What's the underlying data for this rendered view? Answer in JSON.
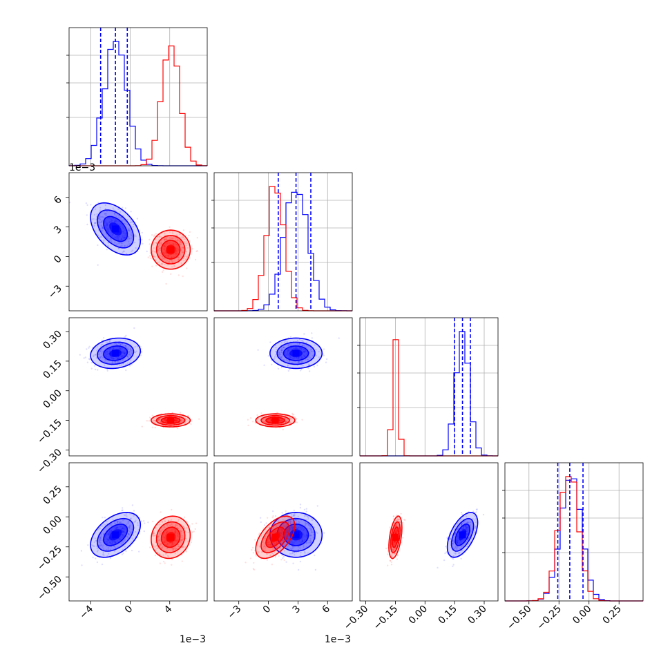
{
  "chart_data": {
    "type": "scatter",
    "kind": "corner-plot",
    "grid": true,
    "dims": [
      {
        "range": [
          -6.2,
          7.8
        ],
        "ticks": [
          -4,
          0,
          4
        ],
        "tick_labels": [
          "−4",
          "0",
          "4"
        ],
        "offset": "1e−3"
      },
      {
        "range": [
          -5.5,
          8.5
        ],
        "ticks": [
          -3,
          0,
          3,
          6
        ],
        "tick_labels": [
          "−3",
          "0",
          "3",
          "6"
        ],
        "offset": "1e−3"
      },
      {
        "range": [
          -0.33,
          0.37
        ],
        "ticks": [
          -0.3,
          -0.15,
          0.0,
          0.15,
          0.3
        ],
        "tick_labels": [
          "−0.30",
          "−0.15",
          "0.00",
          "0.15",
          "0.30"
        ],
        "offset": ""
      },
      {
        "range": [
          -0.7,
          0.45
        ],
        "ticks": [
          -0.5,
          -0.25,
          0.0,
          0.25
        ],
        "tick_labels": [
          "−0.50",
          "−0.25",
          "0.00",
          "0.25"
        ],
        "offset": ""
      }
    ],
    "series": [
      {
        "color": "#0000ff",
        "mean": [
          -1.5,
          2.8,
          0.19,
          -0.15
        ],
        "sd": [
          1.15,
          1.2,
          0.035,
          0.085
        ],
        "quantiles": [
          [
            -3.0,
            -1.5,
            -0.3
          ],
          [
            1.0,
            2.8,
            4.3
          ],
          [
            0.15,
            0.19,
            0.23
          ],
          [
            -0.26,
            -0.16,
            -0.05
          ]
        ]
      },
      {
        "color": "#ff0000",
        "mean": [
          4.1,
          0.7,
          -0.15,
          -0.17
        ],
        "sd": [
          0.9,
          0.9,
          0.015,
          0.08
        ],
        "quantiles": []
      }
    ],
    "correlations": [
      {
        "pair": [
          0,
          1
        ],
        "values": [
          -0.45,
          0
        ]
      },
      {
        "pair": [
          0,
          2
        ],
        "values": [
          0.15,
          0
        ]
      },
      {
        "pair": [
          0,
          3
        ],
        "values": [
          0.45,
          0.1
        ]
      },
      {
        "pair": [
          1,
          2
        ],
        "values": [
          0,
          0
        ]
      },
      {
        "pair": [
          1,
          3
        ],
        "values": [
          0,
          0.55
        ]
      },
      {
        "pair": [
          2,
          3
        ],
        "values": [
          0.55,
          0.45
        ]
      }
    ]
  }
}
